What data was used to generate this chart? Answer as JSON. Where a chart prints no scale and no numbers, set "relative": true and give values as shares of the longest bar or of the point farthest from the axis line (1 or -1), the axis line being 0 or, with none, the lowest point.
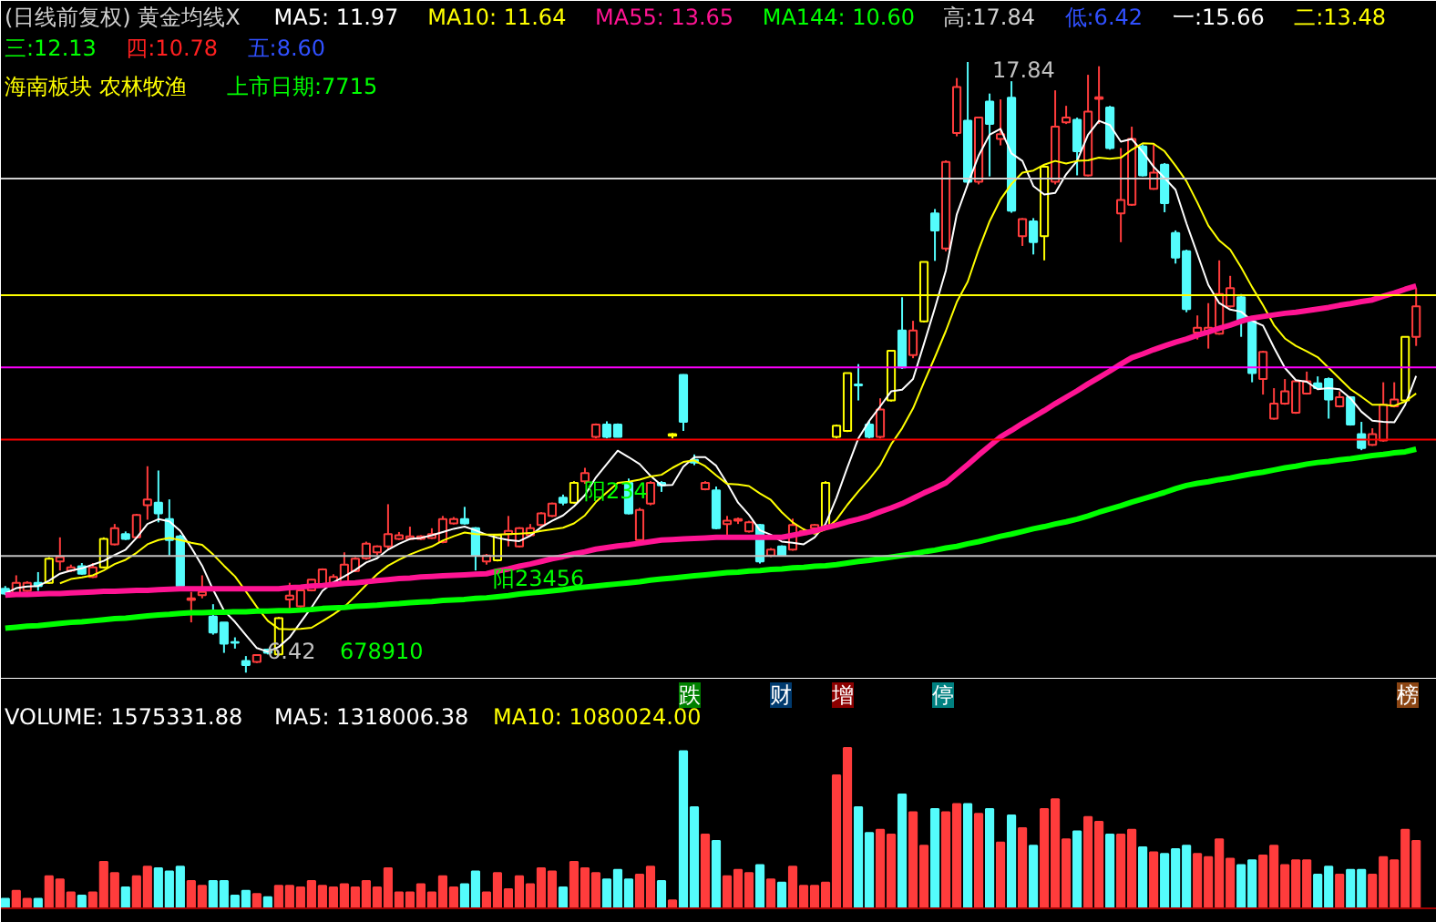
{
  "chart_data": [
    {
      "type": "candlestick",
      "title": "(日线前复权) 黄金均线X",
      "tick_labels": false,
      "categories": [
        null,
        null,
        null,
        null,
        null,
        null,
        null,
        null,
        null,
        null,
        null,
        null,
        null,
        null,
        null,
        null,
        null,
        null,
        null,
        null,
        null,
        null,
        null,
        null,
        null,
        null,
        null,
        null,
        null,
        null,
        null,
        null,
        null,
        null,
        null,
        null,
        null,
        null,
        null,
        null,
        null,
        null,
        null,
        null,
        null,
        null,
        null,
        null,
        null,
        null,
        null,
        null,
        null,
        null,
        null,
        null,
        null,
        null,
        null,
        null,
        null,
        null,
        null,
        null,
        null,
        null,
        null,
        null,
        null,
        null,
        null,
        null,
        null,
        null,
        null,
        null,
        null,
        null,
        null,
        null,
        null,
        null,
        null,
        null,
        null,
        null,
        null,
        null,
        null,
        null,
        null,
        null,
        null,
        null,
        null,
        null,
        null,
        null,
        null,
        null,
        null,
        null,
        null,
        null,
        null,
        null,
        null,
        null,
        null,
        null,
        null,
        null,
        null,
        null,
        null,
        null,
        null,
        null,
        null,
        null,
        null,
        null,
        null,
        null,
        null,
        null,
        null,
        null,
        null,
        null
      ],
      "ohlc": [
        [
          7.99,
          8.04,
          7.87,
          7.9
        ],
        [
          7.9,
          8.24,
          7.88,
          8.1
        ],
        [
          7.95,
          8.13,
          7.93,
          8.1
        ],
        [
          8.1,
          8.3,
          7.95,
          8.04
        ],
        [
          8.1,
          8.58,
          8.08,
          8.55
        ],
        [
          8.5,
          8.95,
          8.33,
          8.58
        ],
        [
          8.33,
          8.44,
          8.3,
          8.39
        ],
        [
          8.41,
          8.47,
          8.25,
          8.27
        ],
        [
          8.21,
          8.47,
          8.19,
          8.39
        ],
        [
          8.39,
          8.95,
          8.37,
          8.92
        ],
        [
          8.82,
          9.2,
          8.8,
          9.12
        ],
        [
          9.01,
          9.06,
          8.9,
          8.92
        ],
        [
          8.95,
          9.39,
          8.93,
          9.37
        ],
        [
          9.55,
          10.28,
          9.28,
          9.66
        ],
        [
          9.6,
          10.2,
          9.23,
          9.4
        ],
        [
          9.29,
          9.66,
          8.61,
          8.9
        ],
        [
          8.97,
          9.0,
          8.02,
          8.04
        ],
        [
          7.78,
          7.93,
          7.36,
          7.81
        ],
        [
          7.87,
          8.24,
          7.81,
          7.93
        ],
        [
          7.47,
          7.7,
          7.13,
          7.17
        ],
        [
          7.36,
          7.36,
          6.79,
          6.96
        ],
        [
          6.99,
          7.08,
          6.87,
          6.98
        ],
        [
          6.64,
          6.73,
          6.42,
          6.56
        ],
        [
          6.62,
          6.76,
          6.6,
          6.75
        ],
        [
          6.85,
          6.87,
          6.76,
          6.79
        ],
        [
          6.76,
          7.46,
          6.74,
          7.44
        ],
        [
          7.79,
          8.1,
          7.62,
          7.86
        ],
        [
          7.66,
          8.01,
          7.64,
          7.96
        ],
        [
          7.96,
          8.17,
          7.94,
          8.16
        ],
        [
          8.04,
          8.37,
          8.02,
          8.35
        ],
        [
          8.1,
          8.26,
          8.08,
          8.21
        ],
        [
          8.1,
          8.67,
          8.07,
          8.44
        ],
        [
          8.32,
          8.58,
          8.3,
          8.55
        ],
        [
          8.56,
          8.87,
          8.53,
          8.83
        ],
        [
          8.67,
          8.8,
          8.62,
          8.78
        ],
        [
          8.78,
          9.57,
          8.72,
          9.01
        ],
        [
          8.92,
          9.05,
          8.9,
          8.99
        ],
        [
          8.92,
          9.15,
          8.9,
          8.97
        ],
        [
          8.92,
          8.99,
          8.9,
          8.97
        ],
        [
          8.94,
          9.12,
          8.92,
          9.01
        ],
        [
          8.86,
          9.35,
          8.84,
          9.29
        ],
        [
          9.21,
          9.33,
          9.19,
          9.29
        ],
        [
          9.29,
          9.52,
          9.19,
          9.21
        ],
        [
          9.12,
          9.14,
          8.33,
          8.61
        ],
        [
          8.5,
          8.64,
          8.44,
          8.61
        ],
        [
          8.52,
          9.01,
          8.5,
          8.99
        ],
        [
          9.01,
          9.35,
          8.78,
          9.07
        ],
        [
          8.78,
          9.14,
          8.76,
          9.12
        ],
        [
          8.99,
          9.2,
          8.97,
          9.12
        ],
        [
          9.18,
          9.42,
          9.16,
          9.4
        ],
        [
          9.35,
          9.6,
          9.33,
          9.58
        ],
        [
          9.69,
          9.75,
          9.55,
          9.6
        ],
        [
          9.6,
          10.0,
          9.58,
          9.97
        ],
        [
          10.0,
          10.25,
          9.95,
          10.15
        ],
        [
          10.83,
          11.08,
          10.8,
          11.06
        ],
        [
          11.06,
          11.12,
          10.8,
          10.83
        ],
        [
          11.06,
          11.08,
          10.82,
          10.83
        ],
        [
          9.97,
          10.05,
          9.38,
          9.4
        ],
        [
          8.9,
          9.5,
          8.88,
          9.46
        ],
        [
          9.58,
          10.0,
          9.55,
          9.97
        ],
        [
          9.97,
          10.0,
          9.8,
          9.92
        ],
        [
          10.85,
          10.9,
          10.8,
          10.88
        ],
        [
          11.99,
          12.0,
          10.94,
          11.11
        ],
        [
          10.4,
          10.5,
          10.3,
          10.35
        ],
        [
          9.85,
          10.0,
          9.83,
          9.97
        ],
        [
          9.83,
          9.9,
          9.1,
          9.12
        ],
        [
          9.2,
          9.35,
          8.92,
          9.26
        ],
        [
          9.26,
          9.32,
          9.2,
          9.29
        ],
        [
          9.06,
          9.26,
          9.04,
          9.23
        ],
        [
          9.18,
          9.2,
          8.46,
          8.5
        ],
        [
          8.61,
          8.75,
          8.58,
          8.72
        ],
        [
          8.78,
          8.8,
          8.6,
          8.61
        ],
        [
          8.72,
          9.3,
          8.7,
          9.18
        ],
        [
          9.01,
          9.12,
          8.99,
          9.07
        ],
        [
          9.12,
          9.2,
          9.1,
          9.18
        ],
        [
          9.12,
          10.0,
          9.1,
          9.97
        ],
        [
          10.83,
          11.06,
          10.8,
          11.04
        ],
        [
          10.94,
          12.02,
          10.92,
          12.02
        ],
        [
          11.81,
          12.19,
          11.51,
          11.79
        ],
        [
          11.06,
          11.12,
          10.8,
          10.83
        ],
        [
          10.83,
          11.55,
          10.8,
          11.34
        ],
        [
          11.51,
          12.45,
          11.49,
          12.44
        ],
        [
          12.82,
          13.44,
          12.1,
          12.13
        ],
        [
          12.36,
          13.0,
          12.3,
          12.82
        ],
        [
          12.99,
          14.1,
          12.97,
          14.1
        ],
        [
          15.01,
          15.09,
          14.12,
          14.69
        ],
        [
          14.35,
          16.0,
          14.3,
          15.97
        ],
        [
          16.51,
          17.54,
          16.45,
          17.37
        ],
        [
          16.74,
          17.84,
          15.55,
          15.6
        ],
        [
          15.6,
          16.8,
          15.55,
          16.8
        ],
        [
          17.1,
          17.25,
          15.7,
          16.68
        ],
        [
          16.4,
          17.14,
          16.28,
          16.49
        ],
        [
          17.17,
          17.48,
          15.02,
          15.06
        ],
        [
          14.58,
          14.92,
          14.4,
          14.9
        ],
        [
          14.86,
          14.92,
          14.24,
          14.47
        ],
        [
          14.58,
          15.9,
          14.13,
          15.88
        ],
        [
          15.6,
          17.31,
          15.55,
          16.63
        ],
        [
          16.71,
          17.02,
          16.68,
          16.8
        ],
        [
          16.76,
          16.8,
          15.72,
          16.17
        ],
        [
          15.72,
          17.6,
          15.7,
          16.91
        ],
        [
          17.15,
          17.76,
          16.68,
          17.18
        ],
        [
          16.99,
          17.02,
          16.2,
          16.23
        ],
        [
          15.01,
          16.23,
          14.47,
          15.26
        ],
        [
          15.17,
          16.63,
          15.15,
          16.4
        ],
        [
          16.26,
          16.3,
          15.7,
          15.72
        ],
        [
          15.47,
          16.29,
          15.45,
          15.77
        ],
        [
          15.92,
          15.95,
          15.03,
          15.2
        ],
        [
          14.64,
          14.69,
          14.07,
          14.18
        ],
        [
          14.3,
          14.33,
          13.16,
          13.22
        ],
        [
          12.78,
          13.1,
          12.65,
          12.87
        ],
        [
          12.78,
          13.33,
          12.48,
          12.87
        ],
        [
          12.76,
          14.13,
          12.74,
          13.5
        ],
        [
          13.27,
          13.84,
          13.25,
          13.61
        ],
        [
          13.44,
          13.5,
          12.7,
          13.01
        ],
        [
          12.99,
          13.05,
          11.85,
          12.02
        ],
        [
          11.91,
          12.44,
          11.62,
          12.42
        ],
        [
          11.17,
          11.74,
          11.15,
          11.45
        ],
        [
          11.45,
          11.91,
          11.43,
          11.68
        ],
        [
          11.28,
          11.89,
          11.26,
          11.87
        ],
        [
          11.64,
          12.05,
          11.62,
          11.87
        ],
        [
          11.83,
          11.96,
          11.72,
          11.74
        ],
        [
          11.91,
          11.94,
          11.17,
          11.53
        ],
        [
          11.4,
          11.68,
          11.38,
          11.57
        ],
        [
          11.57,
          11.59,
          11.04,
          11.06
        ],
        [
          10.88,
          11.11,
          10.58,
          10.62
        ],
        [
          10.68,
          10.99,
          10.66,
          10.88
        ],
        [
          10.76,
          11.85,
          10.74,
          11.43
        ],
        [
          11.4,
          11.85,
          11.38,
          11.53
        ],
        [
          11.51,
          12.7,
          11.49,
          12.7
        ],
        [
          12.7,
          13.61,
          12.53,
          13.27
        ]
      ],
      "colors": [
        "#54fcfc",
        "#ff3c3c",
        "#ff3c3c",
        "#54fcfc",
        "#ffff00",
        "#ff3c3c",
        "#ff3c3c",
        "#54fcfc",
        "#ff3c3c",
        "#ffff00",
        "#ff3c3c",
        "#54fcfc",
        "#ff3c3c",
        "#ff3c3c",
        "#54fcfc",
        "#54fcfc",
        "#54fcfc",
        "#ff3c3c",
        "#ff3c3c",
        "#54fcfc",
        "#54fcfc",
        "#54fcfc",
        "#54fcfc",
        "#ff3c3c",
        "#54fcfc",
        "#ffff00",
        "#ff3c3c",
        "#ff3c3c",
        "#ff3c3c",
        "#ff3c3c",
        "#ff3c3c",
        "#ff3c3c",
        "#ff3c3c",
        "#ff3c3c",
        "#ff3c3c",
        "#ff3c3c",
        "#ff3c3c",
        "#ff3c3c",
        "#ff3c3c",
        "#ff3c3c",
        "#ff3c3c",
        "#ff3c3c",
        "#54fcfc",
        "#54fcfc",
        "#ff3c3c",
        "#ffff00",
        "#ff3c3c",
        "#ff3c3c",
        "#ff3c3c",
        "#ff3c3c",
        "#ff3c3c",
        "#54fcfc",
        "#ffff00",
        "#ff3c3c",
        "#ff3c3c",
        "#54fcfc",
        "#54fcfc",
        "#54fcfc",
        "#ff3c3c",
        "#ff3c3c",
        "#54fcfc",
        "#ffff00",
        "#54fcfc",
        "#54fcfc",
        "#ff3c3c",
        "#54fcfc",
        "#ff3c3c",
        "#ff3c3c",
        "#ff3c3c",
        "#54fcfc",
        "#ff3c3c",
        "#54fcfc",
        "#ff3c3c",
        "#ff3c3c",
        "#ff3c3c",
        "#ffff00",
        "#ffff00",
        "#ffff00",
        "#54fcfc",
        "#54fcfc",
        "#ff3c3c",
        "#ffff00",
        "#54fcfc",
        "#ff3c3c",
        "#ffff00",
        "#54fcfc",
        "#ff3c3c",
        "#ff3c3c",
        "#54fcfc",
        "#ff3c3c",
        "#54fcfc",
        "#ff3c3c",
        "#54fcfc",
        "#ff3c3c",
        "#54fcfc",
        "#ffff00",
        "#ff3c3c",
        "#ff3c3c",
        "#54fcfc",
        "#ff3c3c",
        "#ff3c3c",
        "#54fcfc",
        "#ff3c3c",
        "#ff3c3c",
        "#54fcfc",
        "#ff3c3c",
        "#54fcfc",
        "#54fcfc",
        "#54fcfc",
        "#ff3c3c",
        "#ff3c3c",
        "#ff3c3c",
        "#ff3c3c",
        "#54fcfc",
        "#54fcfc",
        "#ff3c3c",
        "#ff3c3c",
        "#ff3c3c",
        "#ff3c3c",
        "#ff3c3c",
        "#54fcfc",
        "#54fcfc",
        "#ff3c3c",
        "#54fcfc",
        "#54fcfc",
        "#ff3c3c",
        "#ff3c3c",
        "#ff3c3c",
        "#ffff00",
        "#ff3c3c"
      ],
      "series": [
        {
          "type": "line",
          "color": "#ffffff",
          "values": [
            7.9,
            8.0,
            8.03,
            8.04,
            8.14,
            8.27,
            8.33,
            8.37,
            8.44,
            8.51,
            8.62,
            8.72,
            8.94,
            9.2,
            9.29,
            9.25,
            9.07,
            8.76,
            8.42,
            7.97,
            7.58,
            7.37,
            7.12,
            6.88,
            6.81,
            6.9,
            7.08,
            7.36,
            7.64,
            7.95,
            8.11,
            8.22,
            8.34,
            8.48,
            8.56,
            8.72,
            8.83,
            8.92,
            8.94,
            8.99,
            9.05,
            9.11,
            9.15,
            9.08,
            9.0,
            8.94,
            8.9,
            8.88,
            8.98,
            9.14,
            9.26,
            9.36,
            9.53,
            9.74,
            10.07,
            10.32,
            10.57,
            10.45,
            10.32,
            10.1,
            9.92,
            9.93,
            10.27,
            10.45,
            10.45,
            10.29,
            9.96,
            9.6,
            9.37,
            9.08,
            9.0,
            8.87,
            8.85,
            8.82,
            8.95,
            9.2,
            9.69,
            10.26,
            10.8,
            11.13,
            11.4,
            11.68,
            11.71,
            11.91,
            12.57,
            13.24,
            13.94,
            14.99,
            15.55,
            16.09,
            16.48,
            16.59,
            16.13,
            15.99,
            15.52,
            15.36,
            15.39,
            15.74,
            15.99,
            16.48,
            16.74,
            16.66,
            16.35,
            16.4,
            16.16,
            15.88,
            15.67,
            15.45,
            14.82,
            14.25,
            13.67,
            13.33,
            13.21,
            13.17,
            13.0,
            12.91,
            12.5,
            12.12,
            11.89,
            11.86,
            11.72,
            11.74,
            11.72,
            11.55,
            11.3,
            11.13,
            11.11,
            11.1,
            11.43,
            11.97
          ]
        },
        {
          "type": "line",
          "color": "#ffff00",
          "values": [
            null,
            null,
            null,
            null,
            null,
            8.09,
            8.17,
            8.2,
            8.24,
            8.33,
            8.45,
            8.53,
            8.66,
            8.82,
            8.9,
            8.94,
            8.9,
            8.85,
            8.81,
            8.63,
            8.42,
            8.22,
            7.94,
            7.65,
            7.39,
            7.24,
            7.23,
            7.24,
            7.26,
            7.38,
            7.51,
            7.65,
            7.85,
            8.06,
            8.26,
            8.42,
            8.53,
            8.63,
            8.71,
            8.78,
            8.89,
            8.97,
            9.04,
            9.01,
            9.0,
            9.0,
            9.01,
            9.02,
            9.03,
            9.07,
            9.1,
            9.13,
            9.21,
            9.36,
            9.61,
            9.79,
            9.97,
            9.99,
            10.03,
            10.09,
            10.12,
            10.25,
            10.36,
            10.39,
            10.28,
            10.11,
            9.95,
            9.94,
            9.91,
            9.77,
            9.65,
            9.42,
            9.23,
            9.1,
            9.02,
            9.1,
            9.28,
            9.56,
            9.81,
            10.04,
            10.3,
            10.69,
            10.99,
            11.36,
            11.85,
            12.32,
            12.81,
            13.35,
            13.73,
            14.33,
            14.86,
            15.27,
            15.56,
            15.77,
            15.81,
            15.92,
            15.99,
            15.94,
            15.99,
            16.0,
            16.05,
            16.03,
            16.05,
            16.2,
            16.32,
            16.31,
            16.17,
            15.9,
            15.61,
            15.21,
            14.78,
            14.5,
            14.33,
            14.0,
            13.63,
            13.29,
            12.92,
            12.67,
            12.53,
            12.43,
            12.32,
            12.12,
            11.92,
            11.72,
            11.58,
            11.43,
            11.43,
            11.41,
            11.49,
            11.64
          ]
        },
        {
          "type": "line",
          "color": "#ff1493",
          "values": [
            7.87,
            7.88,
            7.88,
            7.89,
            7.9,
            7.9,
            7.91,
            7.92,
            7.93,
            7.94,
            7.94,
            7.95,
            7.96,
            7.96,
            7.97,
            7.98,
            7.99,
            7.99,
            7.99,
            7.99,
            7.99,
            7.99,
            7.99,
            7.99,
            7.99,
            7.99,
            8.01,
            8.02,
            8.04,
            8.05,
            8.07,
            8.09,
            8.1,
            8.12,
            8.14,
            8.16,
            8.18,
            8.19,
            8.21,
            8.22,
            8.23,
            8.24,
            8.25,
            8.26,
            8.27,
            8.32,
            8.36,
            8.41,
            8.45,
            8.5,
            8.55,
            8.59,
            8.64,
            8.68,
            8.73,
            8.76,
            8.79,
            8.81,
            8.84,
            8.87,
            8.9,
            8.91,
            8.92,
            8.93,
            8.94,
            8.95,
            8.95,
            8.95,
            8.95,
            8.95,
            8.95,
            8.95,
            8.99,
            9.03,
            9.07,
            9.13,
            9.18,
            9.24,
            9.29,
            9.35,
            9.43,
            9.5,
            9.58,
            9.68,
            9.78,
            9.87,
            9.97,
            10.14,
            10.31,
            10.49,
            10.66,
            10.83,
            10.95,
            11.08,
            11.2,
            11.32,
            11.45,
            11.57,
            11.69,
            11.82,
            11.94,
            12.06,
            12.19,
            12.31,
            12.38,
            12.46,
            12.53,
            12.6,
            12.66,
            12.73,
            12.79,
            12.86,
            12.92,
            12.99,
            13.05,
            13.08,
            13.11,
            13.14,
            13.16,
            13.19,
            13.22,
            13.25,
            13.29,
            13.32,
            13.36,
            13.39,
            13.46,
            13.52,
            13.59,
            13.65
          ]
        },
        {
          "type": "line",
          "color": "#00ff00",
          "values": [
            7.25,
            7.27,
            7.29,
            7.3,
            7.32,
            7.34,
            7.36,
            7.37,
            7.39,
            7.41,
            7.43,
            7.44,
            7.46,
            7.48,
            7.5,
            7.51,
            7.53,
            7.54,
            7.54,
            7.55,
            7.55,
            7.56,
            7.56,
            7.57,
            7.57,
            7.58,
            7.58,
            7.59,
            7.6,
            7.62,
            7.63,
            7.64,
            7.66,
            7.67,
            7.68,
            7.7,
            7.71,
            7.73,
            7.74,
            7.75,
            7.77,
            7.78,
            7.79,
            7.81,
            7.82,
            7.84,
            7.86,
            7.89,
            7.91,
            7.93,
            7.95,
            7.97,
            8.0,
            8.02,
            8.04,
            8.06,
            8.08,
            8.1,
            8.12,
            8.15,
            8.17,
            8.19,
            8.21,
            8.23,
            8.25,
            8.27,
            8.29,
            8.3,
            8.32,
            8.33,
            8.35,
            8.36,
            8.38,
            8.39,
            8.41,
            8.42,
            8.44,
            8.47,
            8.5,
            8.52,
            8.55,
            8.58,
            8.61,
            8.64,
            8.68,
            8.71,
            8.75,
            8.78,
            8.83,
            8.87,
            8.92,
            8.97,
            9.01,
            9.06,
            9.11,
            9.15,
            9.2,
            9.24,
            9.29,
            9.35,
            9.42,
            9.48,
            9.54,
            9.61,
            9.67,
            9.73,
            9.79,
            9.86,
            9.92,
            9.96,
            9.99,
            10.03,
            10.06,
            10.1,
            10.14,
            10.17,
            10.21,
            10.25,
            10.28,
            10.32,
            10.35,
            10.37,
            10.4,
            10.42,
            10.45,
            10.48,
            10.5,
            10.53,
            10.55,
            10.6
          ]
        }
      ],
      "ref_lines": [
        {
          "axis": "y",
          "value": 15.66,
          "color": "#d0d0d0"
        },
        {
          "axis": "y",
          "value": 13.48,
          "color": "#ffff00"
        },
        {
          "axis": "y",
          "value": 12.13,
          "color": "#ff00ff"
        },
        {
          "axis": "y",
          "value": 10.78,
          "color": "#ff0000"
        },
        {
          "axis": "y",
          "value": 8.6,
          "color": "#c0c0c0"
        }
      ],
      "annotations": [
        "MA5: 11.97",
        "MA10: 11.64",
        "MA55: 13.65",
        "MA144: 10.60",
        "高:17.84",
        "低:6.42",
        "一:15.66",
        "二:13.48",
        "三:12.13",
        "四:10.78",
        "五:8.60",
        "海南板块 农林牧渔",
        "上市日期:7715",
        "17.84",
        "6.42",
        "阳23456",
        "阳234",
        "678910"
      ]
    },
    {
      "type": "bar",
      "relative": true,
      "tick_labels": false,
      "categories": [
        null,
        null,
        null,
        null,
        null,
        null,
        null,
        null,
        null,
        null,
        null,
        null,
        null,
        null,
        null,
        null,
        null,
        null,
        null,
        null,
        null,
        null,
        null,
        null,
        null,
        null,
        null,
        null,
        null,
        null,
        null,
        null,
        null,
        null,
        null,
        null,
        null,
        null,
        null,
        null,
        null,
        null,
        null,
        null,
        null,
        null,
        null,
        null,
        null,
        null,
        null,
        null,
        null,
        null,
        null,
        null,
        null,
        null,
        null,
        null,
        null,
        null,
        null,
        null,
        null,
        null,
        null,
        null,
        null,
        null,
        null,
        null,
        null,
        null,
        null,
        null,
        null,
        null,
        null,
        null,
        null,
        null,
        null,
        null,
        null,
        null,
        null,
        null,
        null,
        null,
        null,
        null,
        null,
        null,
        null,
        null,
        null,
        null,
        null,
        null,
        null,
        null,
        null,
        null,
        null,
        null,
        null,
        null,
        null,
        null,
        null,
        null,
        null,
        null,
        null,
        null,
        null,
        null,
        null,
        null,
        null,
        null,
        null,
        null,
        null,
        null,
        null,
        null,
        null,
        null
      ],
      "values": [
        0.06,
        0.11,
        0.06,
        0.06,
        0.2,
        0.18,
        0.1,
        0.08,
        0.1,
        0.29,
        0.22,
        0.13,
        0.2,
        0.26,
        0.25,
        0.23,
        0.26,
        0.17,
        0.14,
        0.17,
        0.17,
        0.08,
        0.11,
        0.09,
        0.07,
        0.14,
        0.14,
        0.13,
        0.17,
        0.14,
        0.13,
        0.15,
        0.13,
        0.17,
        0.13,
        0.25,
        0.1,
        0.1,
        0.15,
        0.1,
        0.2,
        0.13,
        0.15,
        0.23,
        0.1,
        0.22,
        0.12,
        0.2,
        0.15,
        0.25,
        0.23,
        0.13,
        0.29,
        0.25,
        0.22,
        0.18,
        0.24,
        0.18,
        0.21,
        0.26,
        0.17,
        0.05,
        0.98,
        0.63,
        0.46,
        0.42,
        0.2,
        0.24,
        0.22,
        0.27,
        0.18,
        0.16,
        0.26,
        0.14,
        0.14,
        0.16,
        0.83,
        1,
        0.63,
        0.47,
        0.49,
        0.46,
        0.71,
        0.6,
        0.39,
        0.62,
        0.6,
        0.65,
        0.65,
        0.59,
        0.62,
        0.41,
        0.58,
        0.5,
        0.39,
        0.62,
        0.68,
        0.43,
        0.48,
        0.57,
        0.54,
        0.46,
        0.46,
        0.49,
        0.38,
        0.35,
        0.34,
        0.37,
        0.39,
        0.34,
        0.32,
        0.43,
        0.31,
        0.27,
        0.3,
        0.33,
        0.39,
        0.27,
        0.3,
        0.3,
        0.21,
        0.26,
        0.21,
        0.24,
        0.24,
        0.21,
        0.32,
        0.3,
        0.49,
        0.42
      ],
      "colors": [
        "#54fcfc",
        "#ff3c3c",
        "#ff3c3c",
        "#54fcfc",
        "#ff3c3c",
        "#ff3c3c",
        "#ff3c3c",
        "#54fcfc",
        "#ff3c3c",
        "#ff3c3c",
        "#ff3c3c",
        "#54fcfc",
        "#ff3c3c",
        "#ff3c3c",
        "#54fcfc",
        "#54fcfc",
        "#54fcfc",
        "#ff3c3c",
        "#ff3c3c",
        "#54fcfc",
        "#54fcfc",
        "#54fcfc",
        "#54fcfc",
        "#ff3c3c",
        "#54fcfc",
        "#ff3c3c",
        "#ff3c3c",
        "#ff3c3c",
        "#ff3c3c",
        "#ff3c3c",
        "#ff3c3c",
        "#ff3c3c",
        "#ff3c3c",
        "#ff3c3c",
        "#ff3c3c",
        "#ff3c3c",
        "#ff3c3c",
        "#ff3c3c",
        "#ff3c3c",
        "#ff3c3c",
        "#ff3c3c",
        "#ff3c3c",
        "#54fcfc",
        "#54fcfc",
        "#ff3c3c",
        "#ff3c3c",
        "#ff3c3c",
        "#ff3c3c",
        "#ff3c3c",
        "#ff3c3c",
        "#ff3c3c",
        "#54fcfc",
        "#ff3c3c",
        "#ff3c3c",
        "#ff3c3c",
        "#54fcfc",
        "#54fcfc",
        "#54fcfc",
        "#ff3c3c",
        "#ff3c3c",
        "#54fcfc",
        "#ff3c3c",
        "#54fcfc",
        "#54fcfc",
        "#ff3c3c",
        "#54fcfc",
        "#ff3c3c",
        "#ff3c3c",
        "#ff3c3c",
        "#54fcfc",
        "#ff3c3c",
        "#54fcfc",
        "#ff3c3c",
        "#ff3c3c",
        "#ff3c3c",
        "#ff3c3c",
        "#ff3c3c",
        "#ff3c3c",
        "#54fcfc",
        "#54fcfc",
        "#ff3c3c",
        "#ff3c3c",
        "#54fcfc",
        "#ff3c3c",
        "#ff3c3c",
        "#54fcfc",
        "#ff3c3c",
        "#ff3c3c",
        "#54fcfc",
        "#ff3c3c",
        "#54fcfc",
        "#ff3c3c",
        "#54fcfc",
        "#ff3c3c",
        "#54fcfc",
        "#ff3c3c",
        "#ff3c3c",
        "#ff3c3c",
        "#54fcfc",
        "#ff3c3c",
        "#ff3c3c",
        "#54fcfc",
        "#ff3c3c",
        "#ff3c3c",
        "#54fcfc",
        "#ff3c3c",
        "#54fcfc",
        "#54fcfc",
        "#54fcfc",
        "#ff3c3c",
        "#ff3c3c",
        "#ff3c3c",
        "#ff3c3c",
        "#54fcfc",
        "#54fcfc",
        "#ff3c3c",
        "#ff3c3c",
        "#ff3c3c",
        "#ff3c3c",
        "#ff3c3c",
        "#54fcfc",
        "#54fcfc",
        "#ff3c3c",
        "#54fcfc",
        "#54fcfc",
        "#ff3c3c",
        "#ff3c3c",
        "#ff3c3c",
        "#ff3c3c",
        "#ff3c3c"
      ],
      "annotations": [
        "VOLUME: 1575331.88",
        "MA5: 1318006.38",
        "MA10: 1080024.00",
        "跌",
        "财",
        "增",
        "停",
        "榜"
      ]
    }
  ]
}
